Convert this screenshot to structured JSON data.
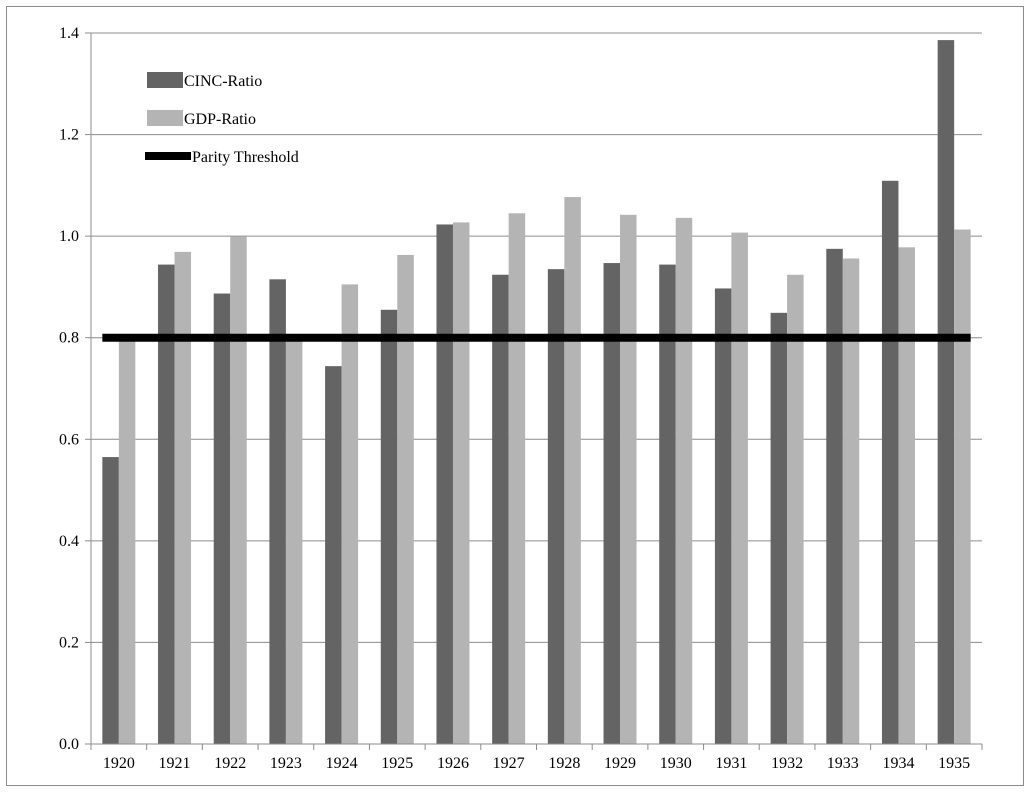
{
  "chart_data": {
    "type": "bar",
    "categories": [
      "1920",
      "1921",
      "1922",
      "1923",
      "1924",
      "1925",
      "1926",
      "1927",
      "1928",
      "1929",
      "1930",
      "1931",
      "1932",
      "1933",
      "1934",
      "1935"
    ],
    "series": [
      {
        "name": "CINC-Ratio",
        "color": "#646464",
        "values": [
          0.565,
          0.944,
          0.887,
          0.915,
          0.744,
          0.855,
          1.023,
          0.924,
          0.935,
          0.947,
          0.944,
          0.897,
          0.849,
          0.975,
          1.109,
          1.386
        ]
      },
      {
        "name": "GDP-Ratio",
        "color": "#b4b4b4",
        "values": [
          0.8,
          0.969,
          0.999,
          0.8,
          0.905,
          0.963,
          1.027,
          1.045,
          1.077,
          1.042,
          1.036,
          1.007,
          0.924,
          0.956,
          0.978,
          1.013
        ]
      }
    ],
    "reference_line": {
      "name": "Parity Threshold",
      "value": 0.8,
      "color": "#000000"
    },
    "ylim": [
      0,
      1.4
    ],
    "yticks": [
      "0.0",
      "0.2",
      "0.4",
      "0.6",
      "0.8",
      "1.0",
      "1.2",
      "1.4"
    ],
    "ytick_values": [
      0,
      0.2,
      0.4,
      0.6,
      0.8,
      1.0,
      1.2,
      1.4
    ],
    "grid": true,
    "legend_placement": "top-left",
    "title": "",
    "xlabel": "",
    "ylabel": ""
  }
}
